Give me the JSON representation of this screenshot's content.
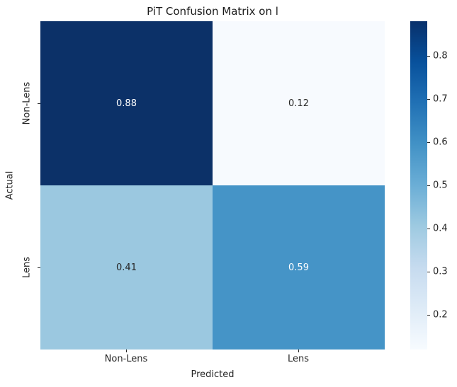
{
  "title": "PiT Confusion Matrix on l",
  "chart_data": {
    "type": "heatmap",
    "title": "PiT Confusion Matrix on l",
    "xlabel": "Predicted",
    "ylabel": "Actual",
    "x_categories": [
      "Non-Lens",
      "Lens"
    ],
    "y_categories": [
      "Non-Lens",
      "Lens"
    ],
    "matrix": [
      [
        0.88,
        0.12
      ],
      [
        0.41,
        0.59
      ]
    ],
    "vmin": 0.12,
    "vmax": 0.88,
    "colormap": "Blues",
    "grid": false,
    "legend_position": "right-colorbar",
    "cells": [
      {
        "row": "Non-Lens",
        "col": "Non-Lens",
        "label": "0.88",
        "bg": "#0c3168",
        "fg": "#ffffff"
      },
      {
        "row": "Non-Lens",
        "col": "Lens",
        "label": "0.12",
        "bg": "#f7fafe",
        "fg": "#262626"
      },
      {
        "row": "Lens",
        "col": "Non-Lens",
        "label": "0.41",
        "bg": "#9bc8e0",
        "fg": "#262626"
      },
      {
        "row": "Lens",
        "col": "Lens",
        "label": "0.59",
        "bg": "#4594c7",
        "fg": "#ffffff"
      }
    ],
    "colorbar_ticks": [
      "0.2",
      "0.3",
      "0.4",
      "0.5",
      "0.6",
      "0.7",
      "0.8"
    ],
    "colorbar_gradient_stops_bottom_to_top": [
      "#f7fbff",
      "#deebf7",
      "#c6dbef",
      "#9ecae1",
      "#6baed6",
      "#4292c6",
      "#2171b5",
      "#08519c",
      "#08306b"
    ]
  },
  "colors": {
    "background": "#ffffff",
    "text": "#262626",
    "title_text": "#1a1a1a",
    "annotation_light": "#ffffff",
    "annotation_dark": "#262626"
  }
}
